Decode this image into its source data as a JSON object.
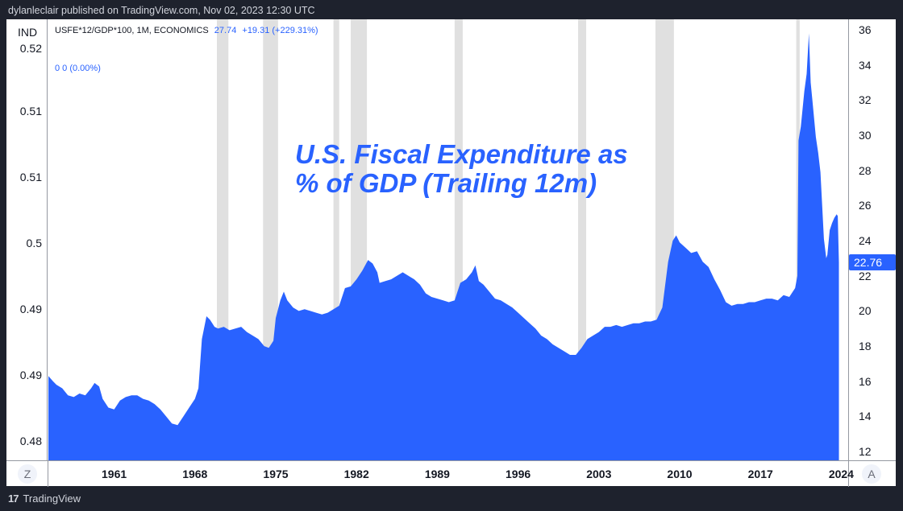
{
  "header": {
    "text": "dylanleclair published on TradingView.com, Nov 02, 2023 12:30 UTC"
  },
  "legend": {
    "symbol": "USFE*12/GDP*100, 1M, ECONOMICS",
    "value": "27.74",
    "change": "+19.31 (+229.31%)",
    "secondary": "0  0 (0.00%)"
  },
  "left_axis": {
    "label": "IND",
    "ticks": [
      "0.52",
      "0.51",
      "0.51",
      "0.5",
      "0.49",
      "0.49",
      "0.48"
    ]
  },
  "buttons": {
    "z_label": "Z",
    "a_label": "A"
  },
  "price_tag": "22.76",
  "footer": {
    "logo": "17",
    "brand": "TradingView"
  },
  "colors": {
    "series": "#2962ff",
    "recession": "#e0e0e0",
    "background": "#1e222d"
  },
  "chart_data": {
    "type": "area",
    "title": "U.S. Fiscal Expenditure as % of GDP (Trailing 12m)",
    "title_lines": [
      "U.S. Fiscal Expenditure as",
      "% of GDP (Trailing 12m)"
    ],
    "xlabel": "",
    "ylabel": "",
    "xlim": [
      1955.3,
      2024.6
    ],
    "ylim": [
      11.5,
      36.6
    ],
    "x_ticks": [
      "1961",
      "1968",
      "1975",
      "1982",
      "1989",
      "1996",
      "2003",
      "2010",
      "2017",
      "2024"
    ],
    "x_tick_values": [
      1961,
      1968,
      1975,
      1982,
      1989,
      1996,
      2003,
      2010,
      2017,
      2024
    ],
    "y_ticks": [
      12,
      14,
      16,
      18,
      20,
      22,
      24,
      26,
      28,
      30,
      32,
      34,
      36
    ],
    "grid": false,
    "last_value": 22.76,
    "recessions": [
      [
        1969.9,
        1970.9
      ],
      [
        1973.9,
        1975.2
      ],
      [
        1980.0,
        1980.5
      ],
      [
        1981.5,
        1982.9
      ],
      [
        1990.5,
        1991.2
      ],
      [
        2001.2,
        2001.9
      ],
      [
        2007.9,
        2009.5
      ],
      [
        2020.1,
        2020.4
      ]
    ],
    "series": [
      {
        "name": "USFE*12/GDP*100",
        "x": [
          1955.3,
          1955.7,
          1956,
          1956.5,
          1957,
          1957.5,
          1958,
          1958.5,
          1959,
          1959.3,
          1959.7,
          1960,
          1960.5,
          1961,
          1961.5,
          1962,
          1962.5,
          1963,
          1963.5,
          1964,
          1964.5,
          1965,
          1965.5,
          1966,
          1966.5,
          1967,
          1967.5,
          1968,
          1968.3,
          1968.6,
          1969,
          1969.3,
          1969.7,
          1970,
          1970.5,
          1971,
          1971.5,
          1972,
          1972.5,
          1973,
          1973.5,
          1974,
          1974.4,
          1974.8,
          1975,
          1975.4,
          1975.7,
          1976,
          1976.5,
          1977,
          1977.5,
          1978,
          1978.5,
          1979,
          1979.5,
          1980,
          1980.5,
          1981,
          1981.5,
          1982,
          1982.5,
          1983,
          1983.4,
          1983.8,
          1984,
          1984.5,
          1985,
          1985.5,
          1986,
          1986.5,
          1987,
          1987.5,
          1988,
          1988.5,
          1989,
          1989.5,
          1990,
          1990.5,
          1991,
          1991.5,
          1992,
          1992.3,
          1992.6,
          1993,
          1993.5,
          1994,
          1994.5,
          1995,
          1995.5,
          1996,
          1996.5,
          1997,
          1997.5,
          1998,
          1998.5,
          1999,
          1999.5,
          2000,
          2000.5,
          2001,
          2001.5,
          2002,
          2002.5,
          2003,
          2003.5,
          2004,
          2004.5,
          2005,
          2005.5,
          2006,
          2006.5,
          2007,
          2007.5,
          2008,
          2008.5,
          2009,
          2009.4,
          2009.7,
          2010,
          2010.5,
          2011,
          2011.5,
          2012,
          2012.5,
          2013,
          2013.5,
          2014,
          2014.5,
          2015,
          2015.5,
          2016,
          2016.5,
          2017,
          2017.5,
          2018,
          2018.5,
          2019,
          2019.5,
          2020,
          2020.2,
          2020.3,
          2020.5,
          2020.8,
          2021,
          2021.2,
          2021.35,
          2021.5,
          2021.8,
          2022,
          2022.2,
          2022.5,
          2022.7,
          2022.8,
          2023,
          2023.2,
          2023.4,
          2023.6,
          2023.7,
          2023.8
        ],
        "values": [
          16.3,
          16.0,
          15.8,
          15.6,
          15.2,
          15.1,
          15.3,
          15.2,
          15.6,
          15.9,
          15.7,
          15.0,
          14.5,
          14.4,
          14.9,
          15.1,
          15.2,
          15.2,
          15.0,
          14.9,
          14.7,
          14.4,
          14.0,
          13.6,
          13.5,
          14.0,
          14.5,
          15.0,
          15.6,
          18.4,
          19.7,
          19.5,
          19.1,
          19.0,
          19.1,
          18.9,
          19.0,
          19.1,
          18.8,
          18.6,
          18.4,
          18.0,
          17.9,
          18.3,
          19.6,
          20.6,
          21.1,
          20.6,
          20.2,
          20.0,
          20.1,
          20.0,
          19.9,
          19.8,
          19.9,
          20.1,
          20.3,
          21.3,
          21.4,
          21.8,
          22.3,
          22.9,
          22.7,
          22.2,
          21.6,
          21.7,
          21.8,
          22.0,
          22.2,
          22.0,
          21.8,
          21.5,
          21.0,
          20.8,
          20.7,
          20.6,
          20.5,
          20.6,
          21.6,
          21.8,
          22.2,
          22.6,
          21.7,
          21.5,
          21.1,
          20.7,
          20.6,
          20.4,
          20.2,
          19.9,
          19.6,
          19.3,
          19.0,
          18.6,
          18.4,
          18.1,
          17.9,
          17.7,
          17.5,
          17.5,
          17.9,
          18.4,
          18.6,
          18.8,
          19.1,
          19.1,
          19.2,
          19.1,
          19.2,
          19.3,
          19.3,
          19.4,
          19.4,
          19.5,
          20.2,
          22.8,
          24.0,
          24.3,
          23.9,
          23.6,
          23.3,
          23.4,
          22.8,
          22.5,
          21.8,
          21.2,
          20.5,
          20.3,
          20.4,
          20.4,
          20.5,
          20.5,
          20.6,
          20.7,
          20.7,
          20.6,
          20.9,
          20.8,
          21.3,
          22.0,
          29.7,
          30.5,
          32.5,
          33.5,
          35.8,
          33.0,
          32.0,
          29.9,
          29.0,
          27.9,
          24.1,
          23.0,
          23.2,
          24.6,
          25.0,
          25.3,
          25.5,
          25.4,
          22.76
        ]
      }
    ]
  }
}
